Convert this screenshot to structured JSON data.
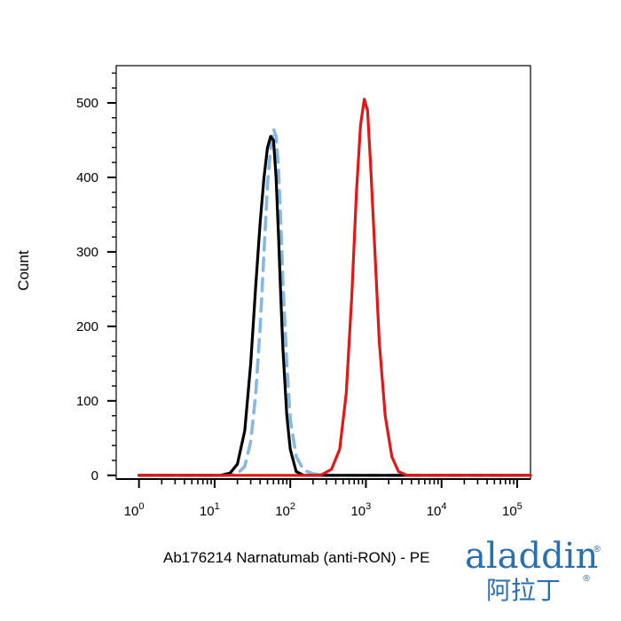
{
  "chart_data": {
    "type": "line",
    "title": "",
    "xlabel": "Ab176214 Narnatumab (anti-RON) - PE",
    "ylabel": "Count",
    "xscale": "log",
    "xlim": [
      0.5,
      150000
    ],
    "ylim": [
      -5,
      550
    ],
    "grid": false,
    "legend": "none",
    "x_ticks": [
      {
        "base": "10",
        "exp": "0"
      },
      {
        "base": "10",
        "exp": "1"
      },
      {
        "base": "10",
        "exp": "2"
      },
      {
        "base": "10",
        "exp": "3"
      },
      {
        "base": "10",
        "exp": "4"
      },
      {
        "base": "10",
        "exp": "5"
      }
    ],
    "y_ticks": [
      0,
      100,
      200,
      300,
      400,
      500
    ],
    "series": [
      {
        "color": "#85b8e4",
        "style": "dashed",
        "x": [
          1,
          15,
          20,
          25,
          30,
          35,
          40,
          45,
          50,
          55,
          60,
          65,
          70,
          75,
          80,
          90,
          100,
          120,
          150,
          200,
          300,
          1000,
          10000,
          150000
        ],
        "y": [
          0,
          0,
          2,
          12,
          45,
          110,
          200,
          300,
          390,
          440,
          465,
          455,
          410,
          340,
          260,
          150,
          75,
          25,
          7,
          2,
          0,
          0,
          0,
          0
        ]
      },
      {
        "color": "#000000",
        "style": "solid",
        "x": [
          1,
          12,
          16,
          20,
          25,
          30,
          35,
          40,
          45,
          50,
          55,
          60,
          65,
          70,
          75,
          80,
          90,
          100,
          120,
          150,
          1000,
          150000
        ],
        "y": [
          0,
          0,
          3,
          15,
          60,
          150,
          255,
          340,
          400,
          440,
          455,
          450,
          400,
          320,
          240,
          170,
          80,
          35,
          5,
          0,
          0,
          0
        ]
      },
      {
        "color": "#e01818",
        "style": "solid",
        "x": [
          1,
          250,
          350,
          450,
          550,
          650,
          750,
          850,
          950,
          1050,
          1150,
          1300,
          1500,
          1800,
          2200,
          2700,
          3500,
          150000
        ],
        "y": [
          0,
          0,
          8,
          35,
          110,
          240,
          380,
          470,
          505,
          490,
          420,
          310,
          180,
          80,
          25,
          5,
          0,
          0
        ]
      }
    ]
  },
  "logo": {
    "en": "aladdin",
    "zh": "阿拉丁",
    "reg": "®"
  }
}
